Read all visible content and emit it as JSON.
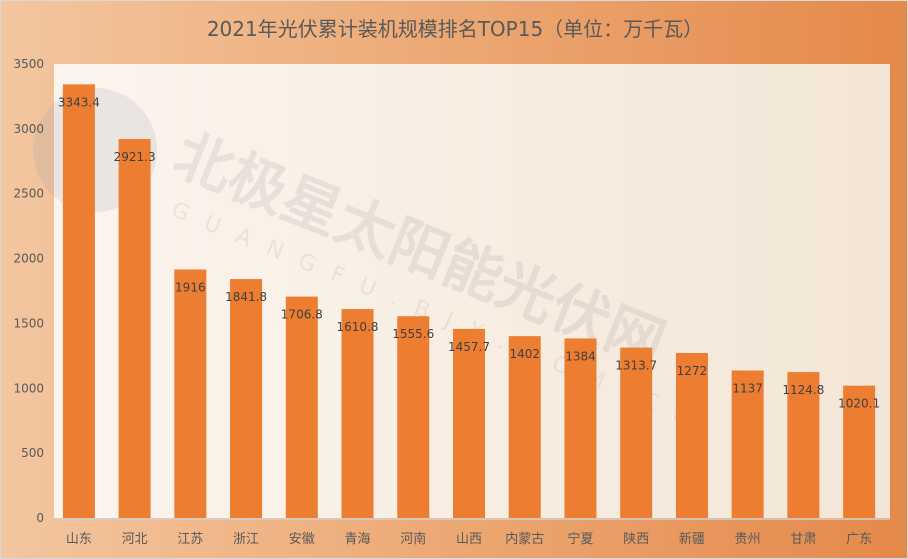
{
  "chart_data": {
    "type": "bar",
    "title": "2021年光伏累计装机规模排名TOP15（单位：万千瓦）",
    "categories": [
      "山东",
      "河北",
      "江苏",
      "浙江",
      "安徽",
      "青海",
      "河南",
      "山西",
      "内蒙古",
      "宁夏",
      "陕西",
      "新疆",
      "贵州",
      "甘肃",
      "广东"
    ],
    "values": [
      3343.4,
      2921.3,
      1916,
      1841.8,
      1706.8,
      1610.8,
      1555.6,
      1457.7,
      1402,
      1384,
      1313.7,
      1272,
      1137,
      1124.8,
      1020.1
    ],
    "data_labels": [
      "3343.4",
      "2921.3",
      "1916",
      "1841.8",
      "1706.8",
      "1610.8",
      "1555.6",
      "1457.7",
      "1402",
      "1384",
      "1313.7",
      "1272",
      "1137",
      "1124.8",
      "1020.1"
    ],
    "xlabel": "",
    "ylabel": "",
    "ylim": [
      0,
      3500
    ],
    "yticks": [
      0,
      500,
      1000,
      1500,
      2000,
      2500,
      3000,
      3500
    ],
    "grid": false,
    "legend": "none",
    "colors": {
      "bar": "#ed7d31",
      "plot_bg": "#fbf3ea",
      "text": "#595959"
    }
  },
  "watermark": {
    "text": "北极星太阳能光伏网",
    "subtext": "GUANGFU.BJX.COM.CN"
  }
}
